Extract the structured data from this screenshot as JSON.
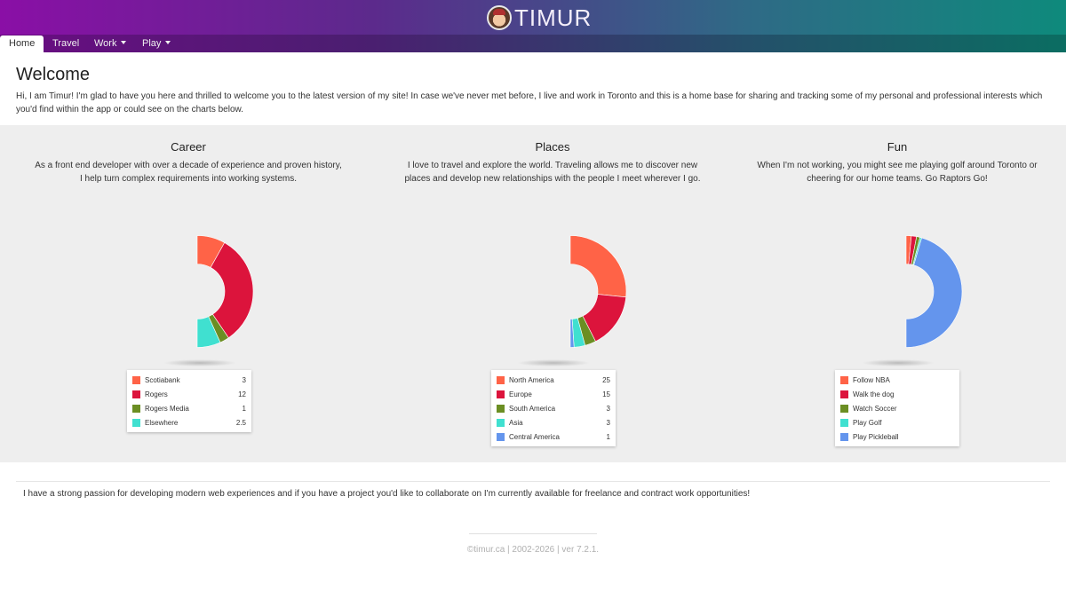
{
  "header": {
    "brand_name": "TIMUR",
    "logo_icon": "avatar-icon"
  },
  "nav": {
    "items": [
      {
        "label": "Home",
        "active": true,
        "dropdown": false
      },
      {
        "label": "Travel",
        "active": false,
        "dropdown": false
      },
      {
        "label": "Work",
        "active": false,
        "dropdown": true
      },
      {
        "label": "Play",
        "active": false,
        "dropdown": true
      }
    ]
  },
  "welcome": {
    "title": "Welcome",
    "text": "Hi, I am Timur! I'm glad to have you here and thrilled to welcome you to the latest version of my site! In case we've never met before, I live and work in Toronto and this is a home base for sharing and tracking some of my personal and professional interests which you'd find within the app or could see on the charts below."
  },
  "sections": [
    {
      "title": "Career",
      "description": "As a front end developer with over a decade of experience and proven history, I help turn complex requirements into working systems."
    },
    {
      "title": "Places",
      "description": "I love to travel and explore the world. Traveling allows me to discover new places and develop new relationships with the people I meet wherever I go."
    },
    {
      "title": "Fun",
      "description": "When I'm not working, you might see me playing golf around Toronto or cheering for our home teams. Go Raptors Go!"
    }
  ],
  "chart_data": [
    {
      "type": "pie",
      "variant": "half-donut",
      "categories": [
        "Scotiabank",
        "Rogers",
        "Rogers Media",
        "Elsewhere"
      ],
      "values": [
        3,
        12,
        1,
        2.5
      ],
      "value_labels": [
        "3",
        "12",
        "1",
        "2.5"
      ],
      "colors": [
        "#ff6347",
        "#dc143c",
        "#6b8e23",
        "#40e0d0"
      ],
      "legend": "bottom"
    },
    {
      "type": "pie",
      "variant": "half-donut",
      "categories": [
        "North America",
        "Europe",
        "South America",
        "Asia",
        "Central America"
      ],
      "values": [
        25,
        15,
        3,
        3,
        1
      ],
      "value_labels": [
        "25",
        "15",
        "3",
        "3",
        "1"
      ],
      "colors": [
        "#ff6347",
        "#dc143c",
        "#6b8e23",
        "#40e0d0",
        "#6495ed"
      ],
      "legend": "bottom"
    },
    {
      "type": "pie",
      "variant": "half-donut",
      "categories": [
        "Follow NBA",
        "Walk the dog",
        "Watch Soccer",
        "Play Golf",
        "Play Pickleball"
      ],
      "values": [
        0.3,
        0.3,
        0.2,
        0.1,
        9.1
      ],
      "value_labels": [
        "",
        "",
        "",
        "",
        ""
      ],
      "colors": [
        "#ff6347",
        "#dc143c",
        "#6b8e23",
        "#40e0d0",
        "#6495ed"
      ],
      "legend": "bottom"
    }
  ],
  "passion_text": "I have a strong passion for developing modern web experiences and if you have a project you'd like to collaborate on I'm currently available for freelance and contract work opportunities!",
  "footer": {
    "text": "©timur.ca | 2002-2026 | ver 7.2.1."
  }
}
